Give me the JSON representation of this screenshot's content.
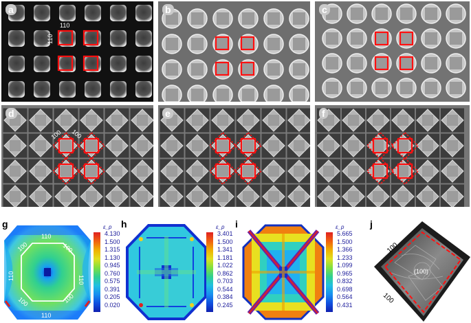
{
  "panels": {
    "a": {
      "label": "a",
      "facet_h": "110",
      "facet_v": "110"
    },
    "b": {
      "label": "b"
    },
    "c": {
      "label": "c"
    },
    "d": {
      "label": "d",
      "facet_1": "100",
      "facet_2": "100"
    },
    "e": {
      "label": "e"
    },
    "f": {
      "label": "f"
    },
    "g": {
      "label": "g",
      "facets": [
        "110",
        "100",
        "110",
        "100",
        "110",
        "100",
        "110",
        "100"
      ],
      "colorbar": {
        "title": "ε_p",
        "ticks": [
          "4.130",
          "1.500",
          "1.315",
          "1.130",
          "0.945",
          "0.760",
          "0.575",
          "0.391",
          "0.205",
          "0.020"
        ]
      }
    },
    "h": {
      "label": "h",
      "colorbar": {
        "title": "ε_p",
        "ticks": [
          "3.401",
          "1.500",
          "1.341",
          "1.181",
          "1.022",
          "0.862",
          "0.703",
          "0.544",
          "0.384",
          "0.245"
        ]
      }
    },
    "i": {
      "label": "i",
      "colorbar": {
        "title": "ε_p",
        "ticks": [
          "5.665",
          "1.500",
          "1.366",
          "1.233",
          "1.099",
          "0.965",
          "0.832",
          "0.698",
          "0.564",
          "0.431"
        ]
      }
    },
    "j": {
      "label": "j",
      "facet_top": "100",
      "facet_center": "(100)",
      "facet_bottom": "100"
    }
  },
  "colors": {
    "highlight": "#ff1010",
    "sem_dark": "#1a1a1a",
    "sem_mid": "#8a8a8a"
  }
}
